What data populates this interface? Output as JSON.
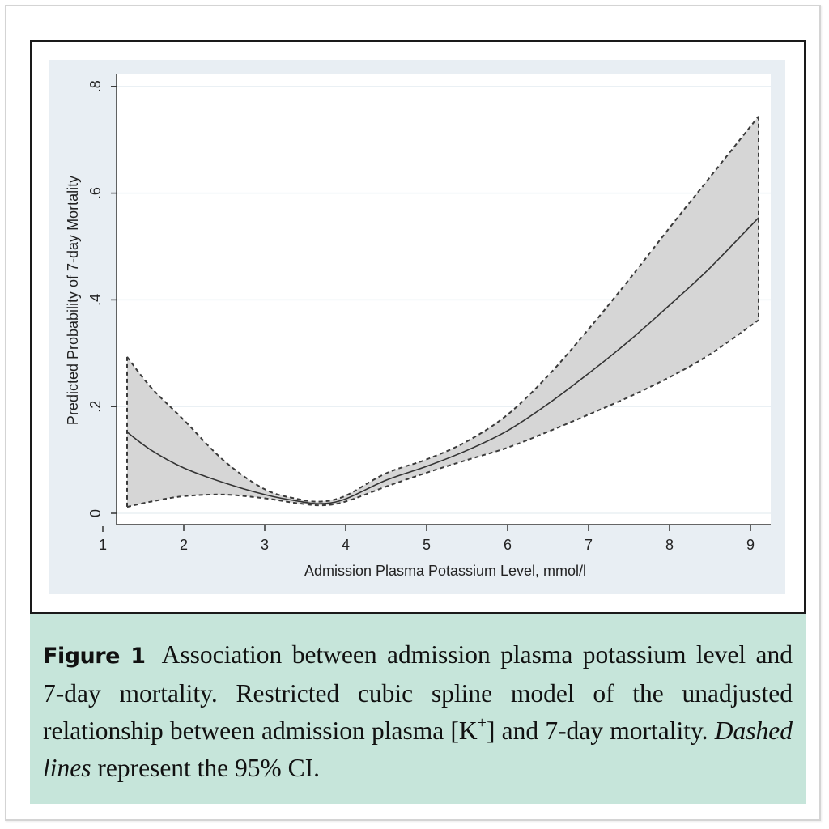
{
  "chart_data": {
    "type": "line",
    "title": "",
    "xlabel": "Admission Plasma Potassium Level, mmol/l",
    "ylabel": "Predicted Probability of 7-day Mortality",
    "xlim": [
      1,
      9.25
    ],
    "ylim": [
      0,
      0.8
    ],
    "x_ticks": [
      1,
      2,
      3,
      4,
      5,
      6,
      7,
      8,
      9
    ],
    "x_tick_labels": [
      "1",
      "2",
      "3",
      "4",
      "5",
      "6",
      "7",
      "8",
      "9"
    ],
    "y_ticks": [
      0,
      0.2,
      0.4,
      0.6,
      0.8
    ],
    "y_tick_labels": [
      "0",
      ".2",
      ".4",
      ".6",
      ".8"
    ],
    "grid": "horizontal",
    "legend": "none",
    "x": [
      1.3,
      1.6,
      2.0,
      2.5,
      3.0,
      3.4,
      3.7,
      4.0,
      4.5,
      5.0,
      5.5,
      6.0,
      6.5,
      7.0,
      7.5,
      8.0,
      8.5,
      9.1
    ],
    "series": [
      {
        "name": "Predicted probability",
        "style": "solid",
        "values": [
          0.152,
          0.118,
          0.085,
          0.057,
          0.035,
          0.023,
          0.018,
          0.027,
          0.062,
          0.088,
          0.118,
          0.155,
          0.205,
          0.262,
          0.323,
          0.39,
          0.46,
          0.554
        ]
      },
      {
        "name": "95% CI upper",
        "style": "dashed",
        "values": [
          0.293,
          0.235,
          0.175,
          0.098,
          0.045,
          0.027,
          0.022,
          0.033,
          0.075,
          0.101,
          0.135,
          0.185,
          0.258,
          0.345,
          0.438,
          0.535,
          0.63,
          0.744
        ]
      },
      {
        "name": "95% CI lower",
        "style": "dashed",
        "values": [
          0.012,
          0.022,
          0.032,
          0.035,
          0.028,
          0.019,
          0.015,
          0.022,
          0.05,
          0.076,
          0.1,
          0.123,
          0.153,
          0.185,
          0.218,
          0.255,
          0.298,
          0.362
        ]
      }
    ],
    "ci_fill_color": "#d6d6d6",
    "line_color": "#333333",
    "plot_region_color": "#e8eef3"
  },
  "caption": {
    "label": "Figure 1",
    "text_1": "Association between admission plasma potassium level and 7-day mortality. Restricted cubic spline model of the unadjusted relationship between admission plasma [K",
    "superscript": "+",
    "text_2": "] and 7-day mortality. ",
    "italic": "Dashed lines",
    "text_3": " represent the 95% CI."
  }
}
